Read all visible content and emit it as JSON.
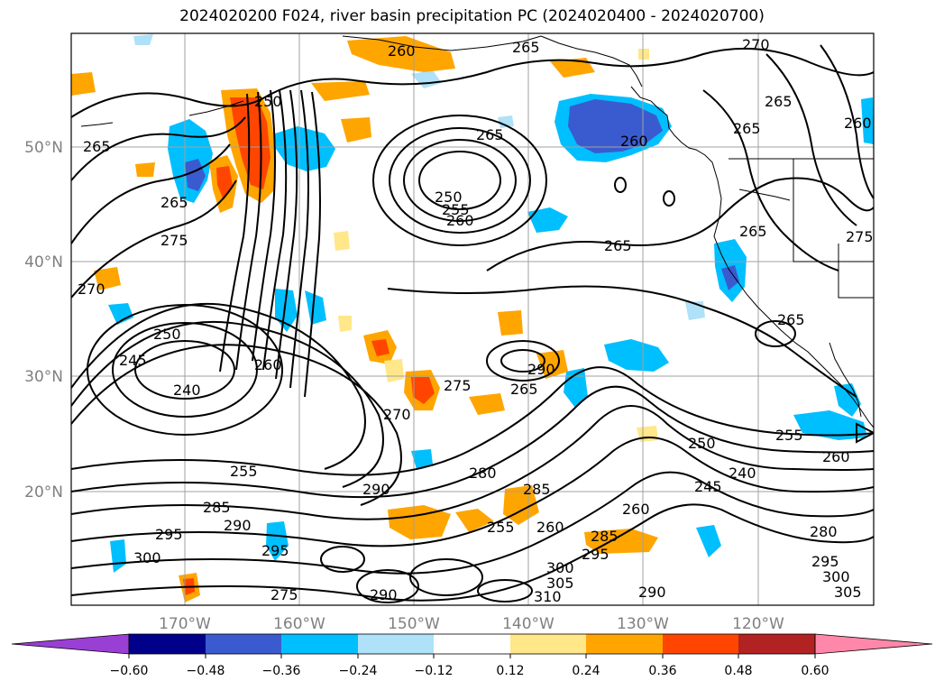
{
  "title": "2024020200 F024, river basin precipitation PC (2024020400 - 2024020700)",
  "map": {
    "lat_labels": [
      "50°N",
      "40°N",
      "30°N",
      "20°N"
    ],
    "lon_labels": [
      "170°W",
      "160°W",
      "150°W",
      "140°W",
      "130°W",
      "120°W"
    ],
    "contour_labels": [
      "260",
      "250",
      "265",
      "270",
      "265",
      "260",
      "265",
      "250",
      "255",
      "260",
      "265",
      "275",
      "270",
      "265",
      "245",
      "250",
      "240",
      "260",
      "290",
      "275",
      "265",
      "270",
      "255",
      "285",
      "290",
      "295",
      "300",
      "290",
      "295",
      "275",
      "280",
      "285",
      "255",
      "260",
      "260",
      "250",
      "240",
      "245",
      "255",
      "260",
      "280",
      "295",
      "285",
      "300",
      "305",
      "310",
      "290",
      "295",
      "300",
      "305",
      "290",
      "265",
      "265",
      "275",
      "260",
      "265",
      "265"
    ]
  },
  "colorbar": {
    "tick_labels": [
      "−0.60",
      "−0.48",
      "−0.36",
      "−0.24",
      "−0.12",
      "0.12",
      "0.24",
      "0.36",
      "0.48",
      "0.60"
    ],
    "colors": [
      "#9a3fd4",
      "#00008b",
      "#3a5bcf",
      "#00bfff",
      "#afe1f8",
      "#ffffff",
      "#ffe78a",
      "#ffa500",
      "#ff4500",
      "#b22222",
      "#ff88aa"
    ]
  }
}
